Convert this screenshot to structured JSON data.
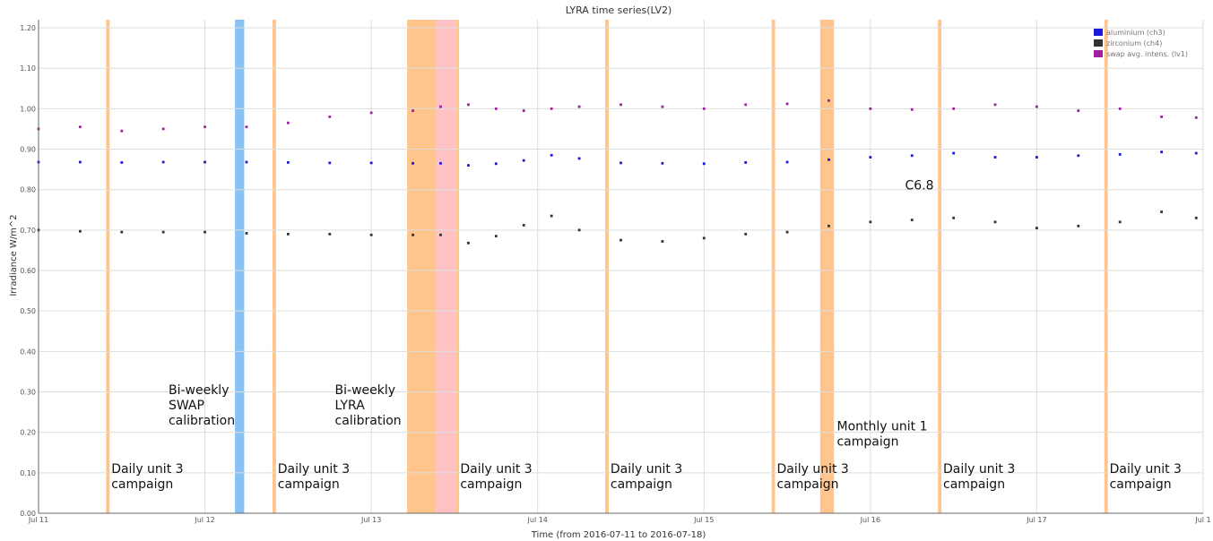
{
  "chart_data": {
    "type": "scatter",
    "title": "LYRA time series(LV2)",
    "xlabel": "Time (from 2016-07-11 to 2016-07-18)",
    "ylabel": "Irradiance W/m^2",
    "xlim": [
      "2016-07-11T00:00",
      "2016-07-18T00:00"
    ],
    "ylim": [
      0,
      1.22
    ],
    "x_ticks": [
      {
        "label": "Jul 11",
        "x": "2016-07-11T00:00"
      },
      {
        "label": "Jul 12",
        "x": "2016-07-12T00:00"
      },
      {
        "label": "Jul 13",
        "x": "2016-07-13T00:00"
      },
      {
        "label": "Jul 14",
        "x": "2016-07-14T00:00"
      },
      {
        "label": "Jul 15",
        "x": "2016-07-15T00:00"
      },
      {
        "label": "Jul 16",
        "x": "2016-07-16T00:00"
      },
      {
        "label": "Jul 17",
        "x": "2016-07-17T00:00"
      },
      {
        "label": "Jul 1",
        "x": "2016-07-18T00:00"
      }
    ],
    "y_ticks": [
      {
        "label": "0.00",
        "y": 0.0
      },
      {
        "label": "0.10",
        "y": 0.1
      },
      {
        "label": "0.20",
        "y": 0.2
      },
      {
        "label": "0.30",
        "y": 0.3
      },
      {
        "label": "0.40",
        "y": 0.4
      },
      {
        "label": "0.50",
        "y": 0.5
      },
      {
        "label": "0.60",
        "y": 0.6
      },
      {
        "label": "0.70",
        "y": 0.7
      },
      {
        "label": "0.80",
        "y": 0.8
      },
      {
        "label": "0.90",
        "y": 0.9
      },
      {
        "label": "1.00",
        "y": 1.0
      },
      {
        "label": "1.10",
        "y": 1.1
      },
      {
        "label": "1.20",
        "y": 1.2
      }
    ],
    "grid": true,
    "legend_position": "top-right",
    "series": [
      {
        "name": "aluminium (ch3)",
        "color": "#1a1adb",
        "x": [
          "2016-07-11T00:00",
          "2016-07-11T06:00",
          "2016-07-11T12:00",
          "2016-07-11T18:00",
          "2016-07-12T00:00",
          "2016-07-12T06:00",
          "2016-07-12T12:00",
          "2016-07-12T18:00",
          "2016-07-13T00:00",
          "2016-07-13T06:00",
          "2016-07-13T10:00",
          "2016-07-13T14:00",
          "2016-07-13T18:00",
          "2016-07-13T22:00",
          "2016-07-14T02:00",
          "2016-07-14T06:00",
          "2016-07-14T12:00",
          "2016-07-14T18:00",
          "2016-07-15T00:00",
          "2016-07-15T06:00",
          "2016-07-15T12:00",
          "2016-07-15T18:00",
          "2016-07-16T00:00",
          "2016-07-16T06:00",
          "2016-07-16T12:00",
          "2016-07-16T18:00",
          "2016-07-17T00:00",
          "2016-07-17T06:00",
          "2016-07-17T12:00",
          "2016-07-17T18:00",
          "2016-07-17T23:00"
        ],
        "values": [
          0.868,
          0.868,
          0.867,
          0.868,
          0.868,
          0.868,
          0.867,
          0.866,
          0.866,
          0.865,
          0.865,
          0.86,
          0.864,
          0.872,
          0.885,
          0.877,
          0.866,
          0.865,
          0.864,
          0.867,
          0.868,
          0.874,
          0.88,
          0.884,
          0.89,
          0.88,
          0.88,
          0.884,
          0.887,
          0.893,
          0.89
        ]
      },
      {
        "name": "zirconium (ch4)",
        "color": "#333333",
        "x": [
          "2016-07-11T00:00",
          "2016-07-11T06:00",
          "2016-07-11T12:00",
          "2016-07-11T18:00",
          "2016-07-12T00:00",
          "2016-07-12T06:00",
          "2016-07-12T12:00",
          "2016-07-12T18:00",
          "2016-07-13T00:00",
          "2016-07-13T06:00",
          "2016-07-13T10:00",
          "2016-07-13T14:00",
          "2016-07-13T18:00",
          "2016-07-13T22:00",
          "2016-07-14T02:00",
          "2016-07-14T06:00",
          "2016-07-14T12:00",
          "2016-07-14T18:00",
          "2016-07-15T00:00",
          "2016-07-15T06:00",
          "2016-07-15T12:00",
          "2016-07-15T18:00",
          "2016-07-16T00:00",
          "2016-07-16T06:00",
          "2016-07-16T12:00",
          "2016-07-16T18:00",
          "2016-07-17T00:00",
          "2016-07-17T06:00",
          "2016-07-17T12:00",
          "2016-07-17T18:00",
          "2016-07-17T23:00"
        ],
        "values": [
          0.7,
          0.697,
          0.695,
          0.695,
          0.695,
          0.692,
          0.69,
          0.69,
          0.688,
          0.688,
          0.688,
          0.668,
          0.685,
          0.712,
          0.735,
          0.7,
          0.675,
          0.672,
          0.68,
          0.69,
          0.695,
          0.71,
          0.72,
          0.725,
          0.73,
          0.72,
          0.705,
          0.71,
          0.72,
          0.745,
          0.73
        ]
      },
      {
        "name": "swap avg. intens. (lv1)",
        "color": "#a020a0",
        "x": [
          "2016-07-11T00:00",
          "2016-07-11T06:00",
          "2016-07-11T12:00",
          "2016-07-11T18:00",
          "2016-07-12T00:00",
          "2016-07-12T06:00",
          "2016-07-12T12:00",
          "2016-07-12T18:00",
          "2016-07-13T00:00",
          "2016-07-13T06:00",
          "2016-07-13T10:00",
          "2016-07-13T14:00",
          "2016-07-13T18:00",
          "2016-07-13T22:00",
          "2016-07-14T02:00",
          "2016-07-14T06:00",
          "2016-07-14T12:00",
          "2016-07-14T18:00",
          "2016-07-15T00:00",
          "2016-07-15T06:00",
          "2016-07-15T12:00",
          "2016-07-15T18:00",
          "2016-07-16T00:00",
          "2016-07-16T06:00",
          "2016-07-16T12:00",
          "2016-07-16T18:00",
          "2016-07-17T00:00",
          "2016-07-17T06:00",
          "2016-07-17T12:00",
          "2016-07-17T18:00",
          "2016-07-17T23:00"
        ],
        "values": [
          0.95,
          0.955,
          0.945,
          0.95,
          0.955,
          0.955,
          0.965,
          0.98,
          0.99,
          0.995,
          1.005,
          1.01,
          1.0,
          0.995,
          1.0,
          1.005,
          1.01,
          1.005,
          1.0,
          1.01,
          1.012,
          1.02,
          1.0,
          0.998,
          1.0,
          1.01,
          1.005,
          0.995,
          1.0,
          0.98,
          0.978
        ]
      }
    ],
    "bands": [
      {
        "start": "2016-07-11T09:45",
        "end": "2016-07-11T10:15",
        "color": "#ffc58c"
      },
      {
        "start": "2016-07-12T04:20",
        "end": "2016-07-12T05:40",
        "color": "#88c2f5"
      },
      {
        "start": "2016-07-12T09:45",
        "end": "2016-07-12T10:15",
        "color": "#ffc58c"
      },
      {
        "start": "2016-07-13T05:10",
        "end": "2016-07-13T09:20",
        "color": "#ffc58c"
      },
      {
        "start": "2016-07-13T09:20",
        "end": "2016-07-13T12:10",
        "color": "#ffc2c4"
      },
      {
        "start": "2016-07-13T12:10",
        "end": "2016-07-13T12:40",
        "color": "#ffc58c"
      },
      {
        "start": "2016-07-14T09:45",
        "end": "2016-07-14T10:15",
        "color": "#ffc58c"
      },
      {
        "start": "2016-07-15T09:45",
        "end": "2016-07-15T10:15",
        "color": "#ffc58c"
      },
      {
        "start": "2016-07-15T16:45",
        "end": "2016-07-15T18:45",
        "color": "#ffc58c"
      },
      {
        "start": "2016-07-16T09:45",
        "end": "2016-07-16T10:15",
        "color": "#ffc58c"
      },
      {
        "start": "2016-07-17T09:45",
        "end": "2016-07-17T10:15",
        "color": "#ffc58c"
      }
    ],
    "annotations": [
      {
        "lines": [
          "Daily unit 3",
          "campaign"
        ],
        "x": "2016-07-11T10:30",
        "y": 0.1
      },
      {
        "lines": [
          "Bi-weekly",
          "SWAP",
          "calibration"
        ],
        "x": "2016-07-11T18:45",
        "y": 0.295
      },
      {
        "lines": [
          "Daily unit 3",
          "campaign"
        ],
        "x": "2016-07-12T10:30",
        "y": 0.1
      },
      {
        "lines": [
          "Bi-weekly",
          "LYRA",
          "calibration"
        ],
        "x": "2016-07-12T18:45",
        "y": 0.295
      },
      {
        "lines": [
          "Daily unit 3",
          "campaign"
        ],
        "x": "2016-07-13T12:50",
        "y": 0.1
      },
      {
        "lines": [
          "Daily unit 3",
          "campaign"
        ],
        "x": "2016-07-14T10:30",
        "y": 0.1
      },
      {
        "lines": [
          "Daily unit 3",
          "campaign"
        ],
        "x": "2016-07-15T10:30",
        "y": 0.1
      },
      {
        "lines": [
          "Monthly unit 1",
          "campaign"
        ],
        "x": "2016-07-15T19:10",
        "y": 0.205
      },
      {
        "lines": [
          "Daily unit 3",
          "campaign"
        ],
        "x": "2016-07-16T10:30",
        "y": 0.1
      },
      {
        "lines": [
          "C6.8"
        ],
        "x": "2016-07-16T05:00",
        "y": 0.8
      },
      {
        "lines": [
          "Daily unit 3",
          "campaign"
        ],
        "x": "2016-07-17T10:30",
        "y": 0.1
      }
    ]
  }
}
